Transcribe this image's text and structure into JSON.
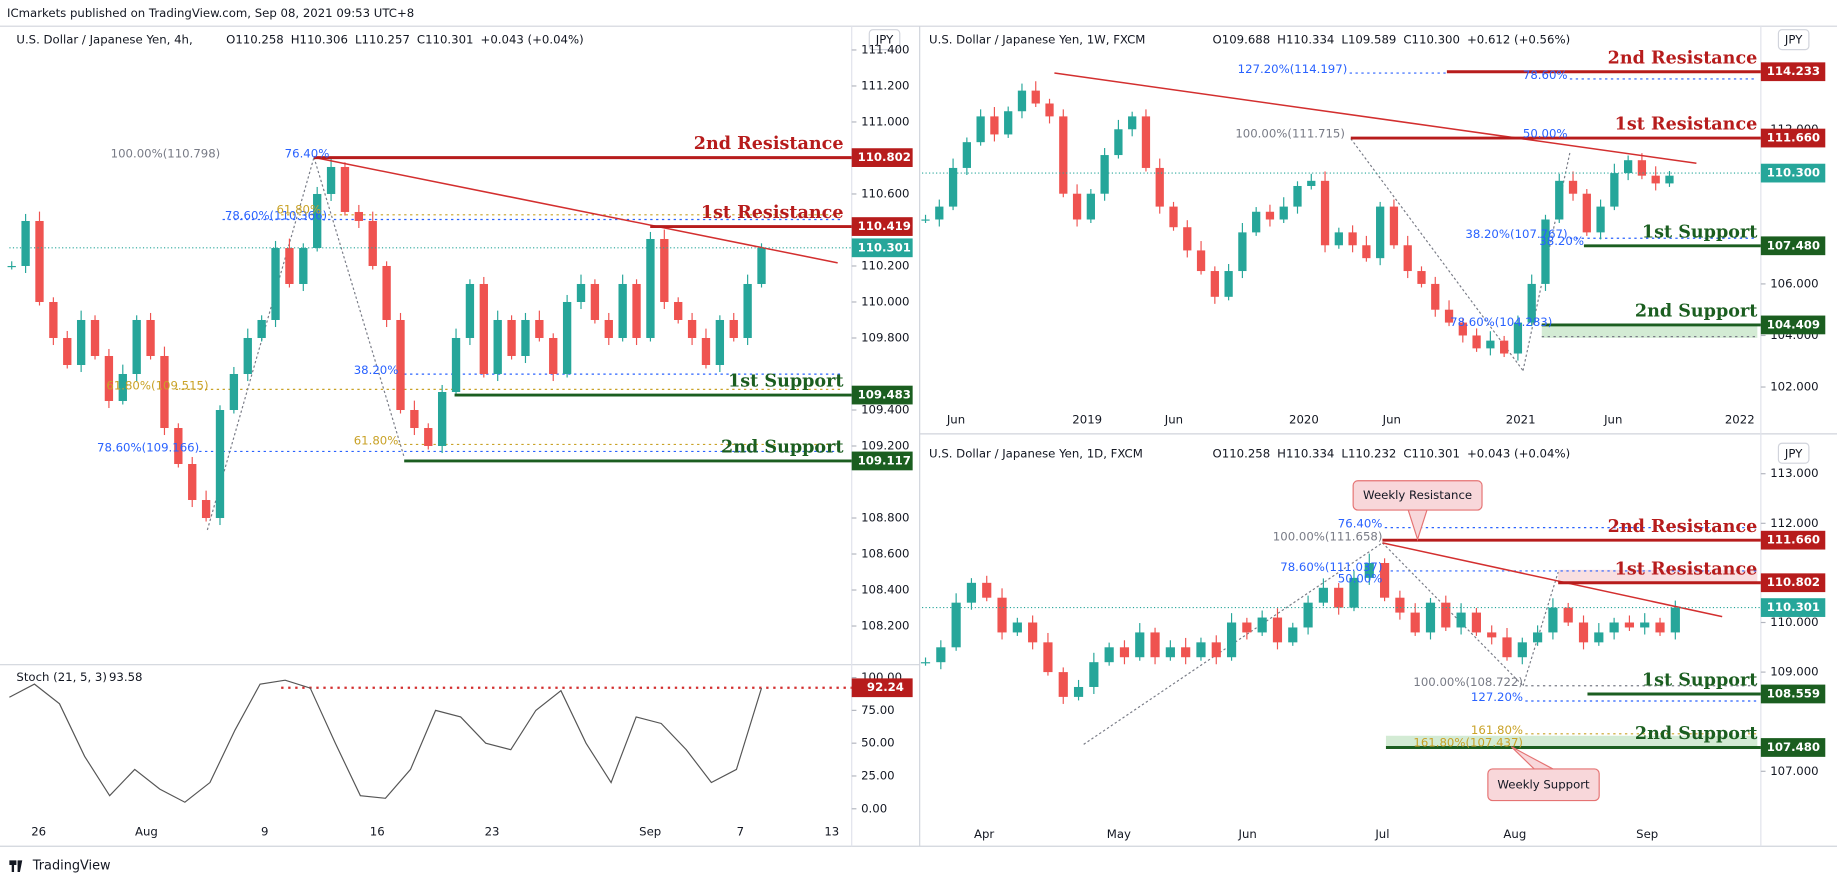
{
  "header": "ICmarkets published on TradingView.com, Sep 08, 2021 09:53 UTC+8",
  "footer": "TradingView",
  "panels": [
    {
      "symbol": "U.S. Dollar / Japanese Yen, 4h,",
      "ohlc": [
        "O110.258",
        "H110.306",
        "L110.257",
        "C110.301"
      ],
      "change": "+0.043 (+0.04%)",
      "currency": "JPY",
      "yticks": [
        {
          "value": 111.4,
          "label": "111.400"
        },
        {
          "value": 111.2,
          "label": "111.200"
        },
        {
          "value": 111,
          "label": "111.000"
        },
        {
          "value": 110.6,
          "label": "110.600"
        },
        {
          "value": 110.2,
          "label": "110.200"
        },
        {
          "value": 110,
          "label": "110.000"
        },
        {
          "value": 109.8,
          "label": "109.800"
        },
        {
          "value": 109.4,
          "label": "109.400"
        },
        {
          "value": 109.2,
          "label": "109.200"
        },
        {
          "value": 108.8,
          "label": "108.800"
        },
        {
          "value": 108.6,
          "label": "108.600"
        },
        {
          "value": 108.4,
          "label": "108.400"
        },
        {
          "value": 108.2,
          "label": "108.200"
        }
      ],
      "xticks": [
        "26",
        "Aug",
        "9",
        "16",
        "23",
        "Sep",
        "7",
        "13"
      ],
      "last": {
        "value": 110.301,
        "label": "110.301"
      },
      "levels": [
        {
          "name": "2nd Resistance",
          "price": {
            "value": 110.802,
            "label": "110.802"
          }
        },
        {
          "name": "1st Resistance",
          "price": {
            "value": 110.419,
            "label": "110.419"
          }
        },
        {
          "name": "1st Support",
          "price": {
            "value": 109.483,
            "label": "109.483"
          }
        },
        {
          "name": "2nd Support",
          "price": {
            "value": 109.117,
            "label": "109.117"
          }
        }
      ],
      "fibs": [
        "100.00%(110.798)",
        "76.40%",
        "78.60%(110.366)",
        "61.80%",
        "38.20%",
        "61.80%(109.515)",
        "78.60%(109.166)",
        "61.80%"
      ],
      "closes": [
        110.2,
        110.45,
        110.0,
        109.8,
        109.65,
        109.9,
        109.7,
        109.45,
        109.6,
        109.9,
        109.7,
        109.3,
        109.1,
        108.9,
        108.8,
        109.4,
        109.6,
        109.8,
        109.9,
        110.3,
        110.1,
        110.3,
        110.6,
        110.75,
        110.5,
        110.45,
        110.2,
        109.9,
        109.4,
        109.3,
        109.2,
        109.5,
        109.8,
        110.1,
        109.6,
        109.9,
        109.7,
        109.9,
        109.8,
        109.6,
        110.0,
        110.1,
        109.9,
        109.8,
        110.1,
        109.8,
        110.35,
        110.0,
        109.9,
        109.8,
        109.65,
        109.9,
        109.8,
        110.1,
        110.3
      ],
      "stoch": {
        "title": "Stoch (21, 5, 3)",
        "value": "93.58",
        "marker": {
          "value": 92.24,
          "label": "92.24"
        },
        "yticks": [
          {
            "value": 100,
            "label": "100.00"
          },
          {
            "value": 75,
            "label": "75.00"
          },
          {
            "value": 50,
            "label": "50.00"
          },
          {
            "value": 25,
            "label": "25.00"
          },
          {
            "value": 0,
            "label": "0.00"
          }
        ],
        "values": [
          85,
          95,
          80,
          40,
          10,
          30,
          15,
          5,
          20,
          60,
          95,
          98,
          92,
          50,
          10,
          8,
          30,
          75,
          70,
          50,
          45,
          75,
          90,
          50,
          20,
          70,
          65,
          45,
          20,
          30,
          92
        ]
      }
    },
    {
      "symbol": "U.S. Dollar / Japanese Yen, 1W, FXCM",
      "ohlc": [
        "O109.688",
        "H110.334",
        "L109.589",
        "C110.300"
      ],
      "change": "+0.612 (+0.56%)",
      "currency": "JPY",
      "yticks": [
        {
          "value": 112,
          "label": "112.000"
        },
        {
          "value": 106,
          "label": "106.000"
        },
        {
          "value": 104,
          "label": "104.000"
        },
        {
          "value": 102,
          "label": "102.000"
        }
      ],
      "xticks": [
        "Jun",
        "2019",
        "Jun",
        "2020",
        "Jun",
        "2021",
        "Jun",
        "2022"
      ],
      "last": {
        "value": 110.3,
        "label": "110.300"
      },
      "levels": [
        {
          "name": "2nd Resistance",
          "price": {
            "value": 114.233,
            "label": "114.233"
          }
        },
        {
          "name": "1st Resistance",
          "price": {
            "value": 111.66,
            "label": "111.660"
          }
        },
        {
          "name": "1st Support",
          "price": {
            "value": 107.48,
            "label": "107.480"
          }
        },
        {
          "name": "2nd Support",
          "price": {
            "value": 104.409,
            "label": "104.409"
          }
        }
      ],
      "fibs": [
        "127.20%(114.197)",
        "78.60%",
        "100.00%(111.715)",
        "50.00%",
        "38.20%(107.767)",
        "38.20%",
        "78.60%(104.283)"
      ],
      "closes": [
        108.5,
        109,
        110.5,
        111.5,
        112.5,
        111.8,
        112.7,
        113.5,
        113.0,
        112.5,
        109.5,
        108.5,
        109.5,
        111,
        112,
        112.5,
        110.5,
        109,
        108.2,
        107.3,
        106.5,
        105.5,
        106.5,
        108,
        108.8,
        108.5,
        109,
        109.8,
        110,
        107.5,
        108,
        107.5,
        107,
        109,
        107.5,
        106.5,
        106,
        105,
        104.5,
        104,
        103.5,
        103.8,
        103.3,
        104.5,
        106,
        108.5,
        110,
        109.5,
        108,
        109,
        110.3,
        110.8,
        110.2,
        109.9,
        110.2
      ]
    },
    {
      "symbol": "U.S. Dollar / Japanese Yen, 1D, FXCM",
      "ohlc": [
        "O110.258",
        "H110.334",
        "L110.232",
        "C110.301"
      ],
      "change": "+0.043 (+0.04%)",
      "currency": "JPY",
      "yticks": [
        {
          "value": 113,
          "label": "113.000"
        },
        {
          "value": 112,
          "label": "112.000"
        },
        {
          "value": 110,
          "label": "110.000"
        },
        {
          "value": 109,
          "label": "109.000"
        },
        {
          "value": 107,
          "label": "107.000"
        }
      ],
      "xticks": [
        "Apr",
        "May",
        "Jun",
        "Jul",
        "Aug",
        "Sep"
      ],
      "last": {
        "value": 110.301,
        "label": "110.301"
      },
      "levels": [
        {
          "name": "2nd Resistance",
          "price": {
            "value": 111.66,
            "label": "111.660"
          }
        },
        {
          "name": "1st Resistance",
          "price": {
            "value": 110.802,
            "label": "110.802"
          }
        },
        {
          "name": "1st Support",
          "price": {
            "value": 108.559,
            "label": "108.559"
          }
        },
        {
          "name": "2nd Support",
          "price": {
            "value": 107.48,
            "label": "107.480"
          }
        }
      ],
      "fibs": [
        "76.40%",
        "100.00%(111.658)",
        "78.60%(111.037)",
        "50.00%",
        "100.00%(108.722)",
        "127.20%",
        "161.80%",
        "161.80%(107.437)"
      ],
      "callouts": [
        "Weekly Resistance",
        "Weekly Support"
      ],
      "closes": [
        109.2,
        109.5,
        110.4,
        110.8,
        110.5,
        109.8,
        110,
        109.6,
        109,
        108.5,
        108.7,
        109.2,
        109.5,
        109.3,
        109.8,
        109.3,
        109.5,
        109.3,
        109.6,
        109.3,
        110,
        109.8,
        110.1,
        109.6,
        109.9,
        110.4,
        110.7,
        110.3,
        110.9,
        111.2,
        110.5,
        110.2,
        109.8,
        110.4,
        109.9,
        110.2,
        109.8,
        109.7,
        109.3,
        109.6,
        109.8,
        110.3,
        110.0,
        109.6,
        109.8,
        110,
        109.9,
        110,
        109.8,
        110.3
      ]
    }
  ]
}
